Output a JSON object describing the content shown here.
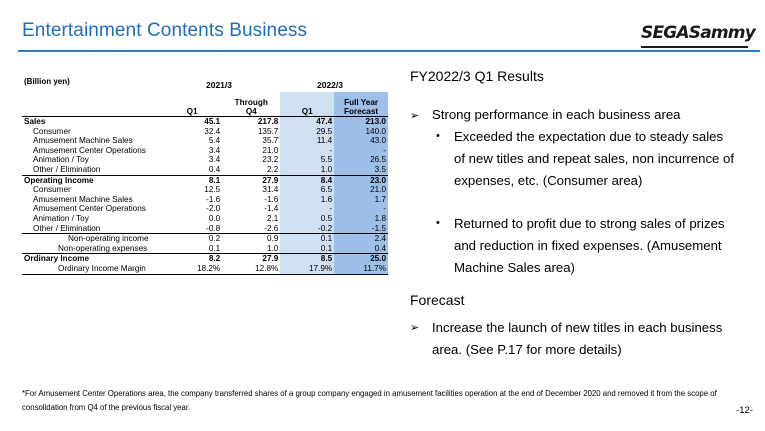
{
  "title": "Entertainment Contents Business",
  "logo_text": "SEGASammy",
  "table": {
    "unit": "(Billion yen)",
    "fy1": "2021/3",
    "fy2": "2022/3",
    "col_q1_prev": "Q1",
    "col_through_q4_l1": "Through",
    "col_through_q4_l2": "Q4",
    "col_q1_curr": "Q1",
    "col_fy_forecast_l1": "Full Year",
    "col_fy_forecast_l2": "Forecast",
    "rows": [
      {
        "label": "Sales",
        "q1_prev": "45.1",
        "q4": "217.8",
        "q1": "47.4",
        "fc": "213.0"
      },
      {
        "label": "Consumer",
        "q1_prev": "32.4",
        "q4": "135.7",
        "q1": "29.5",
        "fc": "140.0"
      },
      {
        "label": "Amusement Machine Sales",
        "q1_prev": "5.4",
        "q4": "35.7",
        "q1": "11.4",
        "fc": "43.0"
      },
      {
        "label": "Amusement Center Operations",
        "q1_prev": "3.4",
        "q4": "21.0",
        "q1": "-",
        "fc": "-"
      },
      {
        "label": "Animation / Toy",
        "q1_prev": "3.4",
        "q4": "23.2",
        "q1": "5.5",
        "fc": "26.5"
      },
      {
        "label": "Other / Elimination",
        "q1_prev": "0.4",
        "q4": "2.2",
        "q1": "1.0",
        "fc": "3.5"
      },
      {
        "label": "Operating Income",
        "q1_prev": "8.1",
        "q4": "27.9",
        "q1": "8.4",
        "fc": "23.0"
      },
      {
        "label": "Consumer",
        "q1_prev": "12.5",
        "q4": "31.4",
        "q1": "6.5",
        "fc": "21.0"
      },
      {
        "label": "Amusement Machine Sales",
        "q1_prev": "-1.6",
        "q4": "-1.6",
        "q1": "1.6",
        "fc": "1.7"
      },
      {
        "label": "Amusement Center Operations",
        "q1_prev": "-2.0",
        "q4": "-1.4",
        "q1": "-",
        "fc": "-"
      },
      {
        "label": "Animation / Toy",
        "q1_prev": "0.0",
        "q4": "2.1",
        "q1": "0.5",
        "fc": "1.8"
      },
      {
        "label": "Other / Elimination",
        "q1_prev": "-0.8",
        "q4": "-2.6",
        "q1": "-0.2",
        "fc": "-1.5"
      },
      {
        "label": "Non-operating income",
        "q1_prev": "0.2",
        "q4": "0.9",
        "q1": "0.1",
        "fc": "2.4"
      },
      {
        "label": "Non-operating expenses",
        "q1_prev": "0.1",
        "q4": "1.0",
        "q1": "0.1",
        "fc": "0.4"
      },
      {
        "label": "Ordinary Income",
        "q1_prev": "8.2",
        "q4": "27.9",
        "q1": "8.5",
        "fc": "25.0"
      },
      {
        "label": "Ordinary Income Margin",
        "q1_prev": "18.2%",
        "q4": "12.8%",
        "q1": "17.9%",
        "fc": "11.7%"
      }
    ]
  },
  "results": {
    "heading": "FY2022/3 Q1 Results",
    "bullet": "Strong performance in each business area",
    "sub1": "Exceeded the expectation due to steady sales of new titles and repeat sales, non incurrence of expenses, etc. (Consumer area)",
    "sub2": "Returned to profit due to strong sales of prizes and reduction in fixed expenses. (Amusement Machine Sales area)"
  },
  "forecast": {
    "heading": "Forecast",
    "bullet": "Increase the launch of new titles in each business area. (See P.17 for more details)"
  },
  "footnote": "*For Amusement Center Operations area, the company transferred shares of a group company engaged in amusement facilities operation at the end of December 2020 and removed it from the scope of consolidation from Q4 of the previous fiscal year.",
  "page_number": "-12-"
}
